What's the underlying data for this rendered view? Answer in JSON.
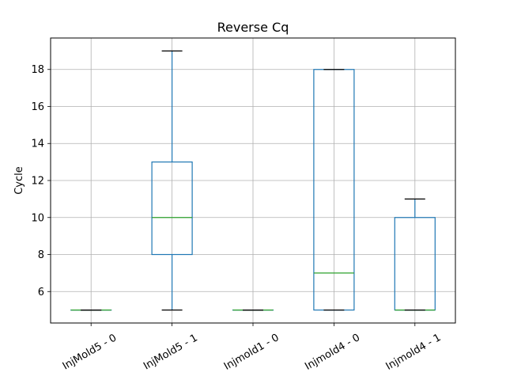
{
  "chart_data": {
    "type": "boxplot",
    "title": "Reverse Cq",
    "ylabel": "Cycle",
    "xlabel": "",
    "ylim": [
      4.3,
      19.7
    ],
    "yticks": [
      6,
      8,
      10,
      12,
      14,
      16,
      18
    ],
    "grid": true,
    "categories": [
      "InjMold5 - 0",
      "InjMold5 - 1",
      "Injmold1 - 0",
      "Injmold4 - 0",
      "Injmold4 - 1"
    ],
    "boxes": [
      {
        "whisker_low": 5,
        "q1": 5,
        "median": 5,
        "q3": 5,
        "whisker_high": 5
      },
      {
        "whisker_low": 5,
        "q1": 8,
        "median": 10,
        "q3": 13,
        "whisker_high": 19
      },
      {
        "whisker_low": 5,
        "q1": 5,
        "median": 5,
        "q3": 5,
        "whisker_high": 5
      },
      {
        "whisker_low": 5,
        "q1": 5,
        "median": 7,
        "q3": 18,
        "whisker_high": 18
      },
      {
        "whisker_low": 5,
        "q1": 5,
        "median": 5,
        "q3": 10,
        "whisker_high": 11
      }
    ],
    "colors": {
      "box": "#1f77b4",
      "median": "#2ca02c",
      "cap": "#000000",
      "grid": "#b0b0b0"
    }
  }
}
